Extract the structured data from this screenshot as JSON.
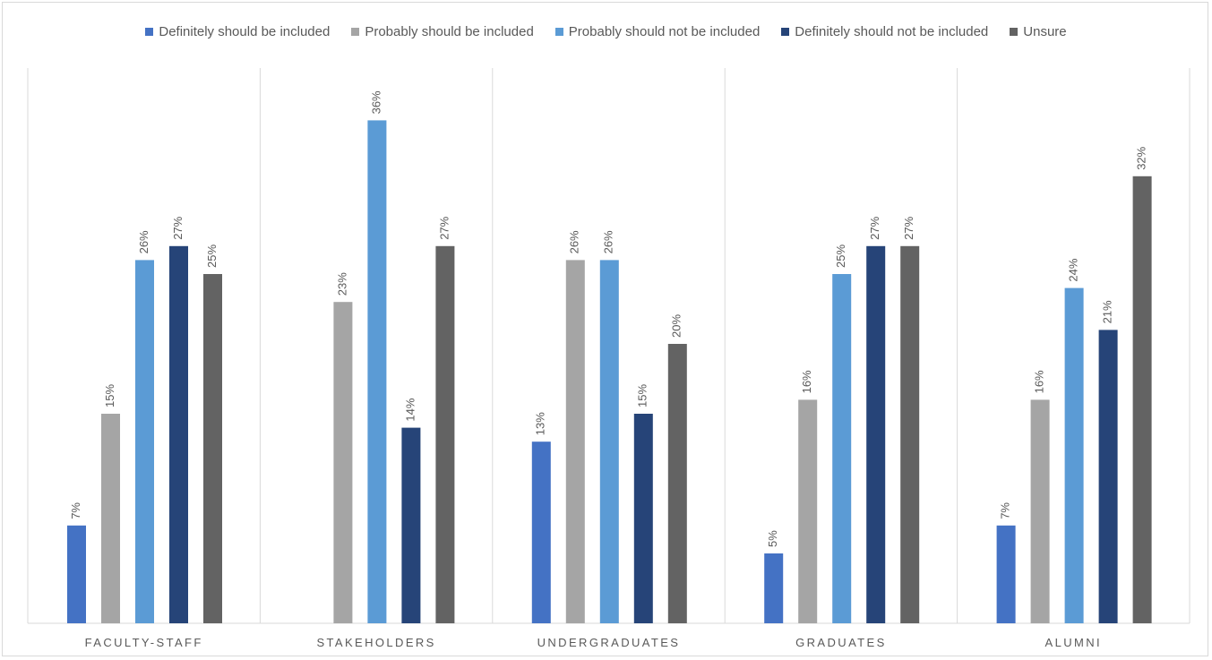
{
  "chart_data": {
    "type": "bar",
    "title": "",
    "xlabel": "",
    "ylabel": "",
    "ylim": [
      0,
      38
    ],
    "grid": false,
    "legend_position": "top",
    "categories": [
      "FACULTY-STAFF",
      "STAKEHOLDERS",
      "UNDERGRADUATES",
      "GRADUATES",
      "ALUMNI"
    ],
    "series": [
      {
        "name": "Definitely should be included",
        "color": "#4472c4",
        "values": [
          7,
          null,
          13,
          5,
          7
        ],
        "labels": [
          "7%",
          "",
          "13%",
          "5%",
          "7%"
        ]
      },
      {
        "name": "Probably should be included",
        "color": "#a5a5a5",
        "values": [
          15,
          23,
          26,
          16,
          16
        ],
        "labels": [
          "15%",
          "23%",
          "26%",
          "16%",
          "16%"
        ]
      },
      {
        "name": "Probably should not be included",
        "color": "#5b9bd5",
        "values": [
          26,
          36,
          26,
          25,
          24
        ],
        "labels": [
          "26%",
          "36%",
          "26%",
          "25%",
          "24%"
        ]
      },
      {
        "name": "Definitely should not be included",
        "color": "#264478",
        "values": [
          27,
          14,
          15,
          27,
          21
        ],
        "labels": [
          "27%",
          "14%",
          "15%",
          "27%",
          "21%"
        ]
      },
      {
        "name": "Unsure",
        "color": "#636363",
        "values": [
          25,
          27,
          20,
          27,
          32
        ],
        "labels": [
          "25%",
          "27%",
          "20%",
          "27%",
          "32%"
        ]
      }
    ]
  }
}
